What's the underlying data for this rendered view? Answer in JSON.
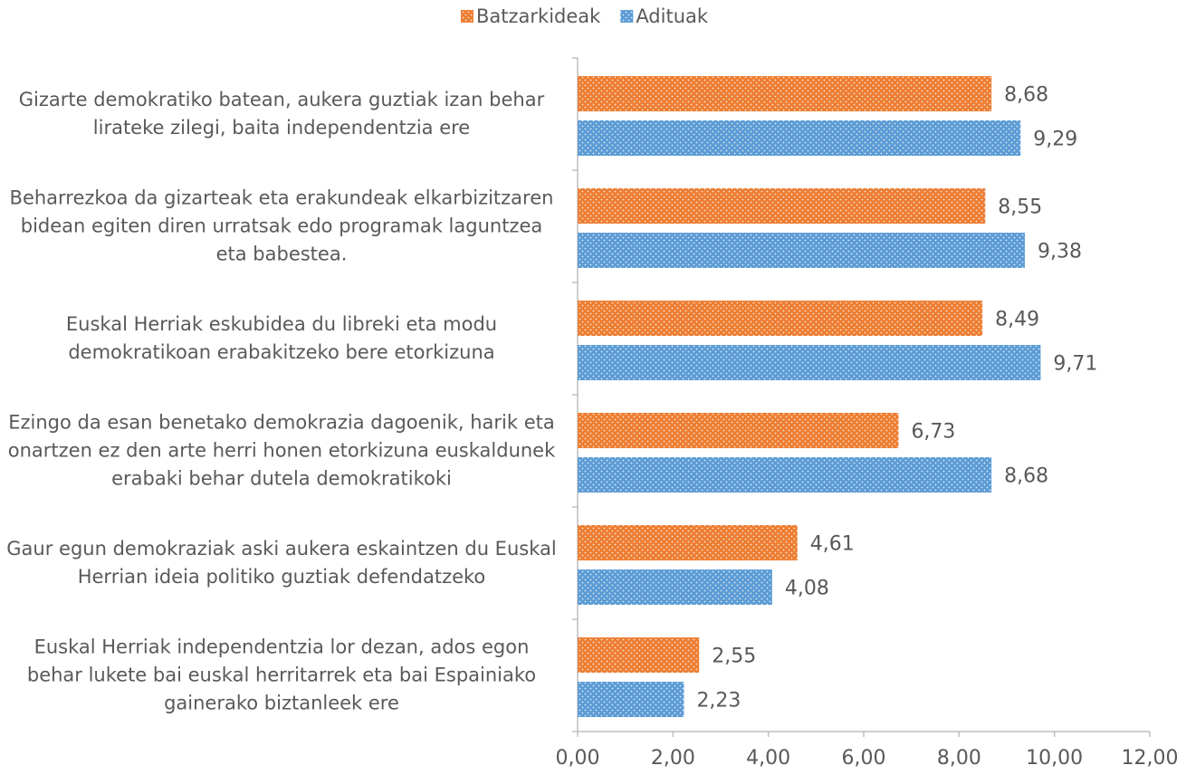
{
  "chart_data": {
    "type": "bar",
    "orientation": "horizontal",
    "categories": [
      "Gizarte demokratiko batean, aukera guztiak izan behar lirateke zilegi, baita independentzia ere",
      "Beharrezkoa da gizarteak eta erakundeak elkarbizitzaren bidean egiten diren urratsak edo programak laguntzea eta babestea.",
      "Euskal Herriak eskubidea du libreki eta  modu demokratikoan erabakitzeko bere etorkizuna",
      "Ezingo da esan benetako demokrazia dagoenik, harik eta onartzen ez den arte herri honen etorkizuna euskaldunek erabaki behar dutela demokratikoki",
      "Gaur egun demokraziak aski aukera eskaintzen du Euskal Herrian ideia politiko guztiak defendatzeko",
      "Euskal Herriak independentzia lor dezan, ados egon behar lukete bai euskal herritarrek eta bai Espainiako gainerako biztanleek ere"
    ],
    "series": [
      {
        "name": "Batzarkideak",
        "color": "#ed7d31",
        "values": [
          8.68,
          8.55,
          8.49,
          6.73,
          4.61,
          2.55
        ],
        "value_labels": [
          "8,68",
          "8,55",
          "8,49",
          "6,73",
          "4,61",
          "2,55"
        ]
      },
      {
        "name": "Adituak",
        "color": "#5b9bd5",
        "values": [
          9.29,
          9.38,
          9.71,
          8.68,
          4.08,
          2.23
        ],
        "value_labels": [
          "9,29",
          "9,38",
          "9,71",
          "8,68",
          "4,08",
          "2,23"
        ]
      }
    ],
    "xlim": [
      0,
      12
    ],
    "xticks": [
      {
        "value": 0,
        "label": "0,00"
      },
      {
        "value": 2,
        "label": "2,00"
      },
      {
        "value": 4,
        "label": "4,00"
      },
      {
        "value": 6,
        "label": "6,00"
      },
      {
        "value": 8,
        "label": "8,00"
      },
      {
        "value": 10,
        "label": "10,00"
      },
      {
        "value": 12,
        "label": "12,00"
      }
    ],
    "legend": "top"
  }
}
